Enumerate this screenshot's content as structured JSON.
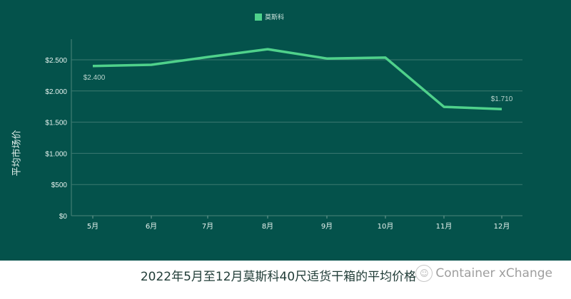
{
  "legend": {
    "label": "莫斯科",
    "color": "#4fd18b"
  },
  "y_axis_title": "平均市场价",
  "caption": "2022年5月至12月莫斯科40尺适货干箱的平均价格",
  "watermark": {
    "icon": "wechat-icon",
    "text": "Container xChange"
  },
  "colors": {
    "background": "#04524b",
    "line": "#4fd18b",
    "grid": "#3c7a70",
    "text": "#e6f2ee"
  },
  "chart_data": {
    "type": "line",
    "title": "2022年5月至12月莫斯科40尺适货干箱的平均价格",
    "xlabel": "",
    "ylabel": "平均市场价",
    "categories": [
      "5月",
      "6月",
      "7月",
      "8月",
      "9月",
      "10月",
      "11月",
      "12月"
    ],
    "series": [
      {
        "name": "莫斯科",
        "values": [
          2400,
          2420,
          2545,
          2670,
          2520,
          2535,
          1745,
          1710
        ]
      }
    ],
    "annotations": [
      {
        "x": "5月",
        "label": "$2.400"
      },
      {
        "x": "12月",
        "label": "$1.710"
      }
    ],
    "yticks": [
      "$0",
      "$500",
      "$1.000",
      "$1.500",
      "$2.000",
      "$2.500"
    ],
    "ytick_values": [
      0,
      500,
      1000,
      1500,
      2000,
      2500
    ],
    "ylim": [
      0,
      2800
    ],
    "grid": true,
    "legend_position": "top"
  }
}
